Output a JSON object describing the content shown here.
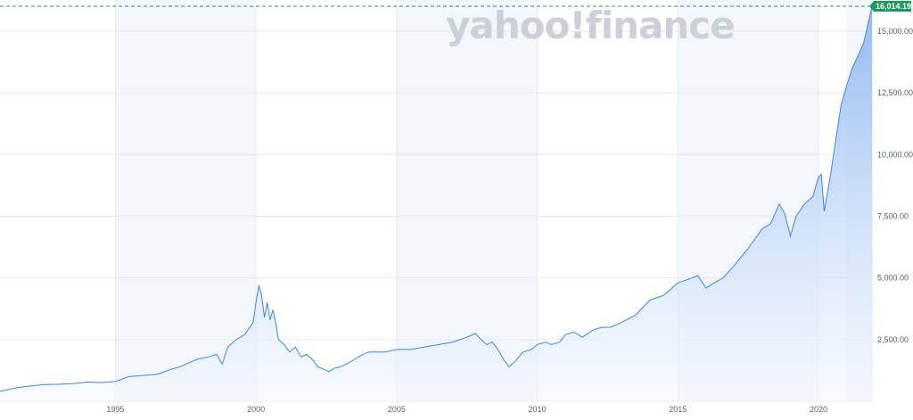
{
  "watermark": "yahoo!finance",
  "last_price_label": "16,014.19",
  "colors": {
    "line": "#3d86e0",
    "area_top": "#8fb8f0",
    "area_bottom": "#f4f8fe",
    "band": "#f3f6fa",
    "grid": "#e6e9ee",
    "last_price": "#1a9b5c"
  },
  "chart_data": {
    "type": "area",
    "title": "",
    "xlabel": "",
    "ylabel": "",
    "x_ticks": [
      "1995",
      "2000",
      "2005",
      "2010",
      "2015",
      "2020"
    ],
    "y_ticks": [
      "2,500.00",
      "5,000.00",
      "7,500.00",
      "10,000.00",
      "12,500.00",
      "15,000.00"
    ],
    "ylim": [
      0,
      16014.19
    ],
    "xlim": [
      1990.9,
      2021.9
    ],
    "grid": true,
    "last_value": 16014.19,
    "series": [
      {
        "x": [
          1990.9,
          1991.5,
          1992.0,
          1992.5,
          1993.0,
          1993.5,
          1994.0,
          1994.5,
          1995.0,
          1995.5,
          1996.0,
          1996.5,
          1997.0,
          1997.3,
          1997.6,
          1997.9,
          1998.3,
          1998.6,
          1998.8,
          1999.0,
          1999.3,
          1999.6,
          1999.9,
          2000.0,
          2000.1,
          2000.2,
          2000.3,
          2000.4,
          2000.5,
          2000.6,
          2000.7,
          2000.8,
          2000.9,
          2001.0,
          2001.2,
          2001.4,
          2001.6,
          2001.8,
          2002.0,
          2002.2,
          2002.4,
          2002.6,
          2002.8,
          2003.0,
          2003.2,
          2003.5,
          2003.8,
          2004.0,
          2004.3,
          2004.6,
          2005.0,
          2005.5,
          2006.0,
          2006.5,
          2007.0,
          2007.5,
          2007.8,
          2008.0,
          2008.2,
          2008.4,
          2008.6,
          2008.8,
          2009.0,
          2009.2,
          2009.5,
          2009.8,
          2010.0,
          2010.3,
          2010.5,
          2010.8,
          2011.0,
          2011.3,
          2011.6,
          2012.0,
          2012.3,
          2012.6,
          2013.0,
          2013.5,
          2014.0,
          2014.5,
          2015.0,
          2015.5,
          2015.7,
          2016.0,
          2016.3,
          2016.6,
          2017.0,
          2017.5,
          2018.0,
          2018.3,
          2018.6,
          2018.8,
          2019.0,
          2019.2,
          2019.5,
          2019.8,
          2020.0,
          2020.1,
          2020.2,
          2020.4,
          2020.6,
          2020.8,
          2021.0,
          2021.2,
          2021.4,
          2021.6,
          2021.8,
          2021.9
        ],
        "values": [
          400,
          550,
          620,
          680,
          690,
          720,
          780,
          760,
          800,
          1000,
          1050,
          1100,
          1300,
          1400,
          1550,
          1700,
          1800,
          1900,
          1500,
          2200,
          2500,
          2700,
          3200,
          4000,
          4700,
          4300,
          3400,
          4000,
          3300,
          3700,
          3200,
          2500,
          2400,
          2300,
          2000,
          2200,
          1800,
          1900,
          1700,
          1400,
          1300,
          1200,
          1350,
          1400,
          1500,
          1700,
          1900,
          2000,
          2000,
          2000,
          2100,
          2100,
          2200,
          2300,
          2400,
          2600,
          2750,
          2500,
          2300,
          2400,
          2100,
          1700,
          1400,
          1600,
          2000,
          2100,
          2300,
          2400,
          2300,
          2400,
          2700,
          2800,
          2600,
          2900,
          3000,
          3000,
          3200,
          3500,
          4100,
          4300,
          4800,
          5000,
          5100,
          4600,
          4800,
          5000,
          5500,
          6200,
          7000,
          7200,
          8000,
          7600,
          6700,
          7500,
          8000,
          8300,
          9100,
          9200,
          7700,
          9000,
          10500,
          12000,
          12800,
          13500,
          14000,
          14500,
          15500,
          16014
        ]
      }
    ]
  }
}
